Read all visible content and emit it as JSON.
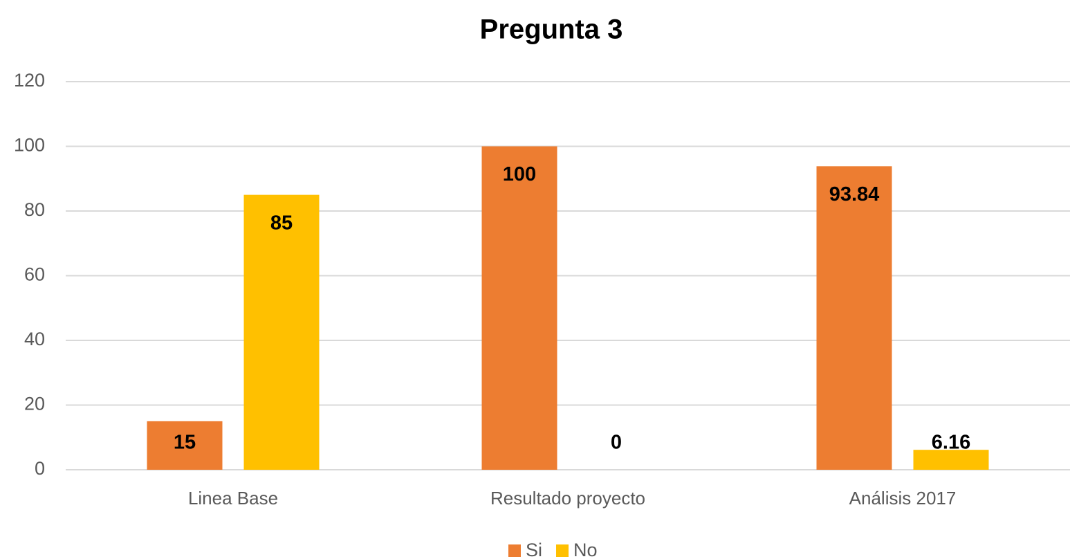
{
  "chart_data": {
    "type": "bar",
    "title": "Pregunta 3",
    "categories": [
      "Linea Base",
      "Resultado proyecto",
      "Análisis 2017"
    ],
    "series": [
      {
        "name": "Si",
        "color": "#ed7d31",
        "values": [
          15,
          100,
          93.84
        ]
      },
      {
        "name": "No",
        "color": "#ffc000",
        "values": [
          85,
          0,
          6.16
        ]
      }
    ],
    "ylim": [
      0,
      120
    ],
    "yticks": [
      0,
      20,
      40,
      60,
      80,
      100,
      120
    ],
    "grid": true,
    "legend": "bottom"
  }
}
